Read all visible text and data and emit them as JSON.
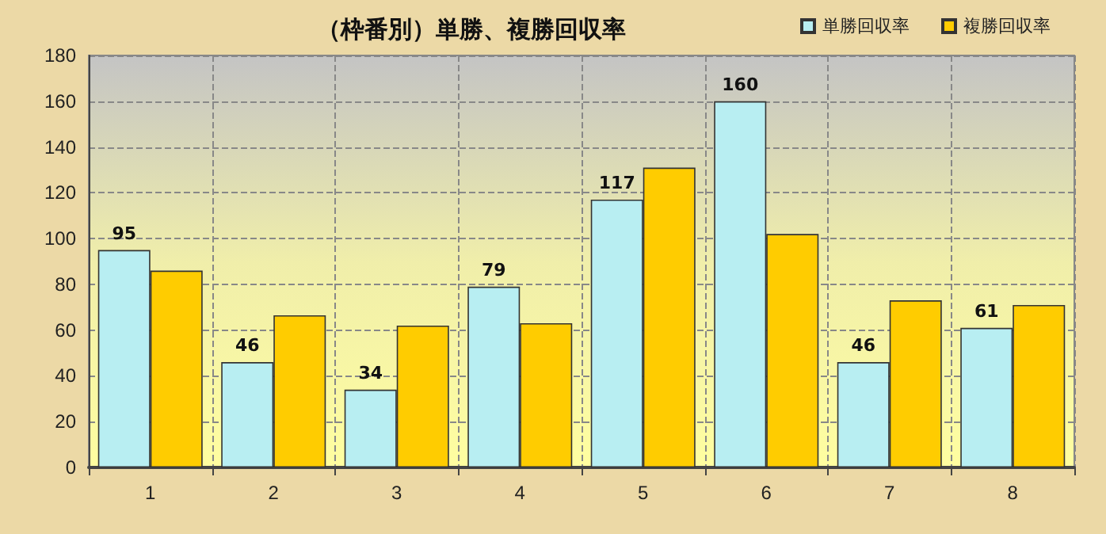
{
  "chart_data": {
    "type": "bar",
    "title": "（枠番別）単勝、複勝回収率",
    "categories": [
      "1",
      "2",
      "3",
      "4",
      "5",
      "6",
      "7",
      "8"
    ],
    "series": [
      {
        "name": "単勝回収率",
        "color": "#b8eef2",
        "values": [
          95,
          46,
          34,
          79,
          117,
          160,
          46,
          61
        ],
        "value_labels": [
          "95",
          "46",
          "34",
          "79",
          "117",
          "160",
          "46",
          "61"
        ]
      },
      {
        "name": "複勝回収率",
        "color": "#ffcc00",
        "values": [
          86,
          66.5,
          62,
          63,
          131,
          102,
          73,
          71
        ]
      }
    ],
    "ylim": [
      0,
      180
    ],
    "yticks": [
      0,
      20,
      40,
      60,
      80,
      100,
      120,
      140,
      160,
      180
    ],
    "grid": true,
    "legend": "top right"
  }
}
